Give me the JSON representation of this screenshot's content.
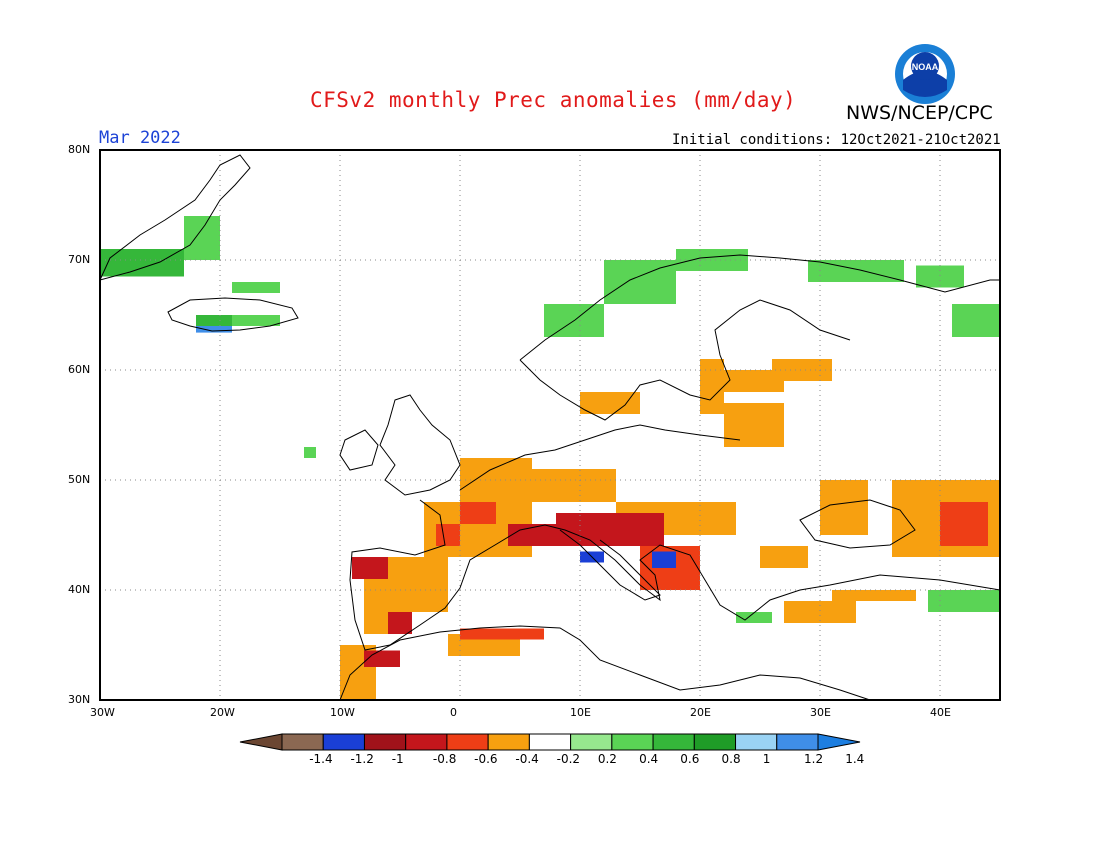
{
  "header": {
    "title": "CFSv2 monthly Prec anomalies (mm/day)",
    "organization": "NWS/NCEP/CPC",
    "logo_text": "NOAA",
    "month_label": "Mar 2022",
    "initial_conditions": "Initial conditions: 12Oct2021-21Oct2021"
  },
  "map": {
    "lon_range": [
      -30,
      45
    ],
    "lat_range": [
      30,
      80
    ],
    "lat_ticks": [
      "30N",
      "40N",
      "50N",
      "60N",
      "70N",
      "80N"
    ],
    "lon_ticks": [
      "30W",
      "20W",
      "10W",
      "0",
      "10E",
      "20E",
      "30E",
      "40E"
    ],
    "grid": true,
    "border_color": "#000000"
  },
  "colorbar": {
    "labels": [
      "-1.4",
      "-1.2",
      "-1",
      "-0.8",
      "-0.6",
      "-0.4",
      "-0.2",
      "0.2",
      "0.4",
      "0.6",
      "0.8",
      "1",
      "1.2",
      "1.4"
    ],
    "colors": [
      "#8b6852",
      "#1a3fd6",
      "#a0121a",
      "#c4161c",
      "#ee3e16",
      "#f7a010",
      "#ffffff",
      "#96e88e",
      "#5ad455",
      "#35b73a",
      "#1f9c27",
      "#9ad3f4",
      "#3f8ee8"
    ],
    "under_color": "#6b4632",
    "over_color": "#1d7ee0"
  },
  "anomaly_patches": [
    {
      "lon": [
        -30,
        -23
      ],
      "lat": [
        68.5,
        71
      ],
      "level": "0.6"
    },
    {
      "lon": [
        -23,
        -20
      ],
      "lat": [
        70,
        74
      ],
      "level": "0.4"
    },
    {
      "lon": [
        -22,
        -19
      ],
      "lat": [
        64,
        65
      ],
      "level": "0.6"
    },
    {
      "lon": [
        -19,
        -15
      ],
      "lat": [
        64,
        65
      ],
      "level": "0.4"
    },
    {
      "lon": [
        -22,
        -19
      ],
      "lat": [
        63.4,
        64
      ],
      "level": "1.2"
    },
    {
      "lon": [
        7,
        12
      ],
      "lat": [
        63,
        66
      ],
      "level": "0.4"
    },
    {
      "lon": [
        12,
        18
      ],
      "lat": [
        66,
        70
      ],
      "level": "0.4"
    },
    {
      "lon": [
        18,
        24
      ],
      "lat": [
        69,
        71
      ],
      "level": "0.4"
    },
    {
      "lon": [
        29,
        37
      ],
      "lat": [
        68,
        70
      ],
      "level": "0.4"
    },
    {
      "lon": [
        38,
        42
      ],
      "lat": [
        67.5,
        69.5
      ],
      "level": "0.4"
    },
    {
      "lon": [
        41,
        45
      ],
      "lat": [
        63,
        66
      ],
      "level": "0.4"
    },
    {
      "lon": [
        20,
        22
      ],
      "lat": [
        56,
        61
      ],
      "level": "-0.4"
    },
    {
      "lon": [
        22,
        27
      ],
      "lat": [
        58,
        60
      ],
      "level": "-0.4"
    },
    {
      "lon": [
        26,
        31
      ],
      "lat": [
        59,
        61
      ],
      "level": "-0.4"
    },
    {
      "lon": [
        22,
        27
      ],
      "lat": [
        53,
        57
      ],
      "level": "-0.4"
    },
    {
      "lon": [
        10,
        15
      ],
      "lat": [
        56,
        58
      ],
      "level": "-0.4"
    },
    {
      "lon": [
        0,
        6
      ],
      "lat": [
        48,
        52
      ],
      "level": "-0.4"
    },
    {
      "lon": [
        6,
        13
      ],
      "lat": [
        48,
        51
      ],
      "level": "-0.4"
    },
    {
      "lon": [
        -3,
        6
      ],
      "lat": [
        43,
        48
      ],
      "level": "-0.4"
    },
    {
      "lon": [
        13,
        23
      ],
      "lat": [
        45,
        48
      ],
      "level": "-0.4"
    },
    {
      "lon": [
        -8,
        -1
      ],
      "lat": [
        38,
        43
      ],
      "level": "-0.4"
    },
    {
      "lon": [
        -8,
        -5
      ],
      "lat": [
        36,
        38
      ],
      "level": "-0.4"
    },
    {
      "lon": [
        -10,
        -7
      ],
      "lat": [
        30,
        35
      ],
      "level": "-0.4"
    },
    {
      "lon": [
        -1,
        5
      ],
      "lat": [
        34,
        36
      ],
      "level": "-0.4"
    },
    {
      "lon": [
        30,
        34
      ],
      "lat": [
        45,
        50
      ],
      "level": "-0.4"
    },
    {
      "lon": [
        36,
        45
      ],
      "lat": [
        43,
        50
      ],
      "level": "-0.4"
    },
    {
      "lon": [
        25,
        29
      ],
      "lat": [
        42,
        44
      ],
      "level": "-0.4"
    },
    {
      "lon": [
        27,
        33
      ],
      "lat": [
        37,
        39
      ],
      "level": "-0.4"
    },
    {
      "lon": [
        31,
        38
      ],
      "lat": [
        39,
        40
      ],
      "level": "-0.4"
    },
    {
      "lon": [
        -2,
        0
      ],
      "lat": [
        44,
        46
      ],
      "level": "-0.6"
    },
    {
      "lon": [
        0,
        3
      ],
      "lat": [
        46,
        48
      ],
      "level": "-0.6"
    },
    {
      "lon": [
        4,
        8
      ],
      "lat": [
        44,
        46
      ],
      "level": "-0.8"
    },
    {
      "lon": [
        8,
        17
      ],
      "lat": [
        44,
        47
      ],
      "level": "-0.8"
    },
    {
      "lon": [
        15,
        20
      ],
      "lat": [
        40,
        44
      ],
      "level": "-0.6"
    },
    {
      "lon": [
        40,
        44
      ],
      "lat": [
        44,
        48
      ],
      "level": "-0.6"
    },
    {
      "lon": [
        -9,
        -6
      ],
      "lat": [
        41,
        43
      ],
      "level": "-0.8"
    },
    {
      "lon": [
        -6,
        -4
      ],
      "lat": [
        36,
        38
      ],
      "level": "-0.8"
    },
    {
      "lon": [
        -8,
        -5
      ],
      "lat": [
        33,
        34.5
      ],
      "level": "-0.8"
    },
    {
      "lon": [
        0,
        7
      ],
      "lat": [
        35.5,
        36.5
      ],
      "level": "-0.6"
    },
    {
      "lon": [
        10,
        12
      ],
      "lat": [
        42.5,
        43.5
      ],
      "level": "-1.2"
    },
    {
      "lon": [
        16,
        18
      ],
      "lat": [
        42,
        43.5
      ],
      "level": "-1.2"
    },
    {
      "lon": [
        -13,
        -12
      ],
      "lat": [
        52,
        53
      ],
      "level": "0.4"
    },
    {
      "lon": [
        -19,
        -15
      ],
      "lat": [
        67,
        68
      ],
      "level": "0.4"
    },
    {
      "lon": [
        39,
        45
      ],
      "lat": [
        38,
        40
      ],
      "level": "0.4"
    },
    {
      "lon": [
        23,
        26
      ],
      "lat": [
        37,
        38
      ],
      "level": "0.4"
    }
  ]
}
